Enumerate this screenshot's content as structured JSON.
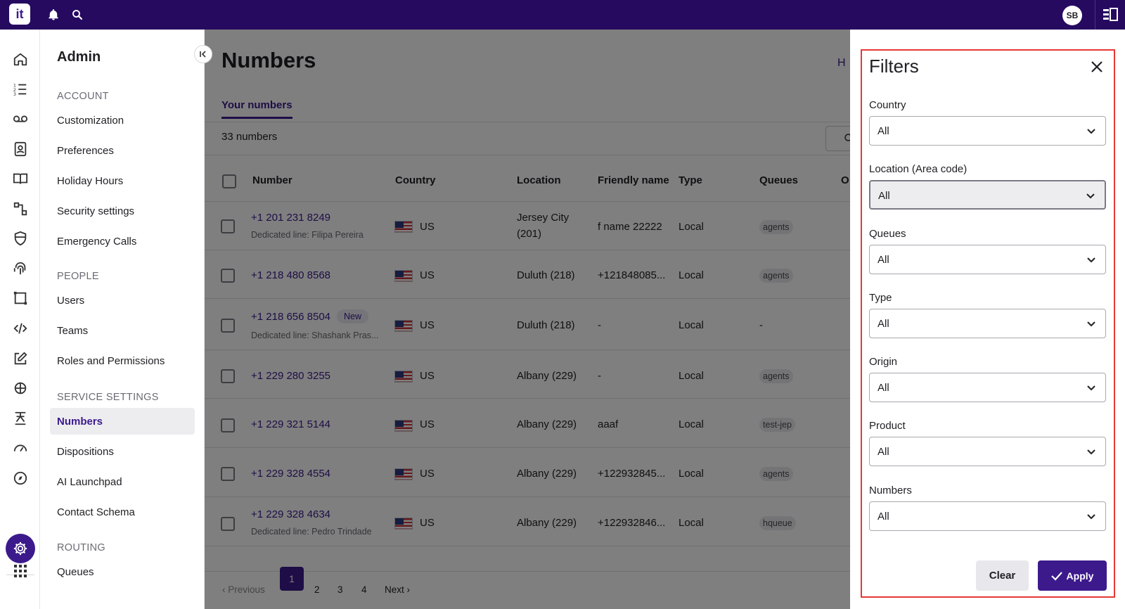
{
  "topbar": {
    "logo_text": "it",
    "avatar_initials": "SB"
  },
  "sidebar": {
    "title": "Admin",
    "sections": [
      {
        "heading": "ACCOUNT",
        "items": [
          "Customization",
          "Preferences",
          "Holiday Hours",
          "Security settings",
          "Emergency Calls"
        ]
      },
      {
        "heading": "PEOPLE",
        "items": [
          "Users",
          "Teams",
          "Roles and Permissions"
        ]
      },
      {
        "heading": "SERVICE SETTINGS",
        "items": [
          "Numbers",
          "Dispositions",
          "AI Launchpad",
          "Contact Schema"
        ]
      },
      {
        "heading": "ROUTING",
        "items": [
          "Queues"
        ]
      }
    ],
    "active_item": "Numbers"
  },
  "main": {
    "title": "Numbers",
    "tab": "Your numbers",
    "count": "33 numbers",
    "header_partial": "H",
    "columns": [
      "Number",
      "Country",
      "Location",
      "Friendly name",
      "Type",
      "Queues",
      "O"
    ],
    "rows": [
      {
        "number": "+1 201 231 8249",
        "sub": "Dedicated line: Filipa Pereira",
        "badge": "",
        "country": "US",
        "location": "Jersey City",
        "location2": "(201)",
        "friendly": "f name 22222",
        "type": "Local",
        "queue": "agents"
      },
      {
        "number": "+1 218 480 8568",
        "sub": "",
        "badge": "",
        "country": "US",
        "location": "Duluth (218)",
        "location2": "",
        "friendly": "+121848085...",
        "type": "Local",
        "queue": "agents"
      },
      {
        "number": "+1 218 656 8504",
        "sub": "Dedicated line: Shashank Pras...",
        "badge": "New",
        "country": "US",
        "location": "Duluth (218)",
        "location2": "",
        "friendly": "-",
        "type": "Local",
        "queue": "-"
      },
      {
        "number": "+1 229 280 3255",
        "sub": "",
        "badge": "",
        "country": "US",
        "location": "Albany (229)",
        "location2": "",
        "friendly": "-",
        "type": "Local",
        "queue": "agents"
      },
      {
        "number": "+1 229 321 5144",
        "sub": "",
        "badge": "",
        "country": "US",
        "location": "Albany (229)",
        "location2": "",
        "friendly": "aaaf",
        "type": "Local",
        "queue": "test-jep"
      },
      {
        "number": "+1 229 328 4554",
        "sub": "",
        "badge": "",
        "country": "US",
        "location": "Albany (229)",
        "location2": "",
        "friendly": "+122932845...",
        "type": "Local",
        "queue": "agents"
      },
      {
        "number": "+1 229 328 4634",
        "sub": "Dedicated line: Pedro Trindade",
        "badge": "",
        "country": "US",
        "location": "Albany (229)",
        "location2": "",
        "friendly": "+122932846...",
        "type": "Local",
        "queue": "hqueue"
      }
    ],
    "pagination": {
      "previous": "Previous",
      "pages": [
        "1",
        "2",
        "3",
        "4"
      ],
      "current": "1",
      "next": "Next"
    }
  },
  "filters": {
    "title": "Filters",
    "fields": [
      {
        "label": "Country",
        "value": "All"
      },
      {
        "label": "Location (Area code)",
        "value": "All"
      },
      {
        "label": "Queues",
        "value": "All"
      },
      {
        "label": "Type",
        "value": "All"
      },
      {
        "label": "Origin",
        "value": "All"
      },
      {
        "label": "Product",
        "value": "All"
      },
      {
        "label": "Numbers",
        "value": "All"
      }
    ],
    "clear_label": "Clear",
    "apply_label": "Apply"
  },
  "colors": {
    "topbar": "#260a60",
    "accent": "#3c1a8c",
    "highlight_border": "#e53935"
  }
}
